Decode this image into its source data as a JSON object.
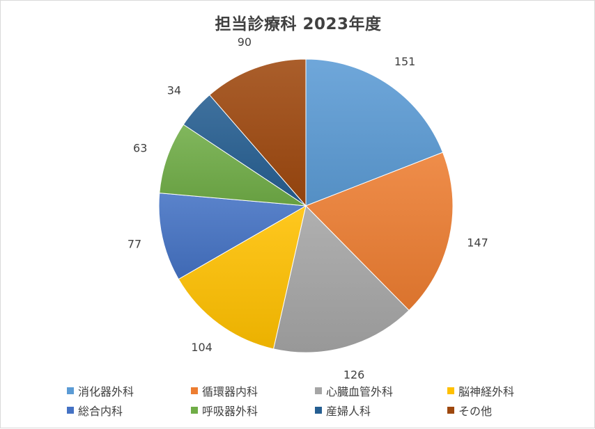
{
  "chart_data": {
    "type": "pie",
    "title": "担当診療科 2023年度",
    "categories": [
      "消化器外科",
      "循環器内科",
      "心臓血管外科",
      "脳神経外科",
      "総合内科",
      "呼吸器外科",
      "産婦人科",
      "その他"
    ],
    "values": [
      151,
      147,
      126,
      104,
      77,
      63,
      34,
      90
    ],
    "colors": [
      "#5b9bd5",
      "#ed7d31",
      "#a5a5a5",
      "#ffc000",
      "#4472c4",
      "#70ad47",
      "#255e91",
      "#9e480e"
    ],
    "legend_position": "bottom"
  }
}
